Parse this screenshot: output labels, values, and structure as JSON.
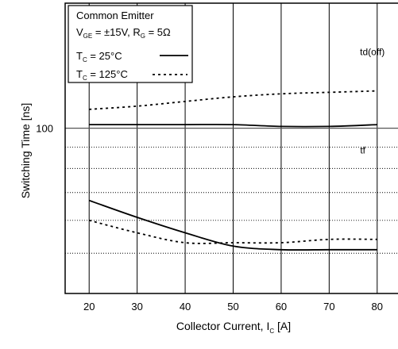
{
  "chart_data": {
    "type": "line",
    "title": "",
    "xlabel": "Collector Current, I",
    "xlabel_sub": "C",
    "xlabel_unit": " [A]",
    "ylabel": "Switching Time [ns]",
    "y_scale": "log",
    "xlim": [
      15,
      85
    ],
    "ylim": [
      40,
      200
    ],
    "x_ticks": [
      20,
      30,
      40,
      50,
      60,
      70,
      80
    ],
    "y_tick_labels": [
      {
        "value": 100,
        "label": "100"
      }
    ],
    "y_grid_values": [
      50,
      60,
      70,
      80,
      90,
      100,
      200
    ],
    "grid": true,
    "legend": {
      "position": "top-left",
      "header_line1": "Common Emitter",
      "header_line2": {
        "v_main": "V",
        "v_sub": "GE",
        "v_rest": " = ±15V, R",
        "r_sub": "G",
        "r_rest": " = 5Ω"
      },
      "entries": [
        {
          "main": "T",
          "sub": "C",
          "rest": " = 25°C",
          "style": "solid"
        },
        {
          "main": "T",
          "sub": "C",
          "rest": " = 125°C",
          "style": "dashed"
        }
      ]
    },
    "annotations": [
      {
        "text": "td(off)",
        "x": 79,
        "y": 150
      },
      {
        "text": "tf",
        "x": 77,
        "y": 87
      }
    ],
    "series": [
      {
        "group": "td(off)",
        "style": "solid",
        "x": [
          20,
          30,
          40,
          50,
          60,
          70,
          80
        ],
        "values": [
          102,
          102,
          102,
          102,
          101,
          101,
          102
        ]
      },
      {
        "group": "td(off)",
        "style": "dashed",
        "x": [
          20,
          30,
          40,
          50,
          60,
          70,
          80
        ],
        "values": [
          111,
          113,
          116,
          119,
          121,
          122,
          123
        ]
      },
      {
        "group": "tf",
        "style": "solid",
        "x": [
          20,
          30,
          40,
          50,
          60,
          70,
          80
        ],
        "values": [
          67,
          61,
          56,
          52,
          51,
          51,
          51
        ]
      },
      {
        "group": "tf",
        "style": "dashed",
        "x": [
          20,
          30,
          40,
          50,
          60,
          70,
          80
        ],
        "values": [
          60,
          56,
          53,
          53,
          53,
          54,
          54
        ]
      }
    ]
  }
}
